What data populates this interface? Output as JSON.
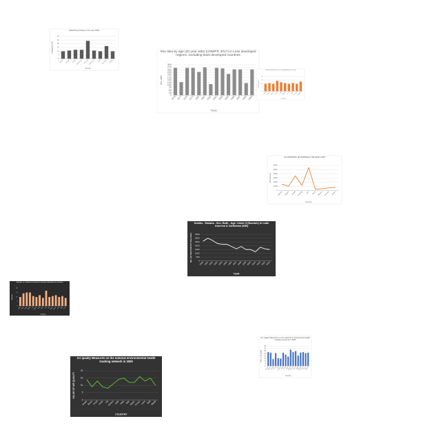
{
  "chart_data": [
    {
      "type": "bar",
      "title": "Stabilizing funding in the year 1990",
      "x_label": "Country",
      "y_label": "Funding (in US$)",
      "categories": [
        "Algeria",
        "Angola",
        "Benin",
        "Botswana",
        "Burundi",
        "Cameroon",
        "Chad",
        "Comoros",
        "Congo"
      ],
      "series": [
        {
          "name": "Funding",
          "color": "#595959",
          "values": [
            10,
            11,
            12,
            12,
            24,
            11,
            10,
            17,
            10
          ]
        }
      ],
      "ylim": [
        0,
        30
      ],
      "yticks": [
        0,
        5,
        10,
        15,
        20,
        25,
        30
      ],
      "grid": true
    },
    {
      "type": "bar",
      "title": "Sex ratio by age (20 year olds) (UNWPP, 2017) in Less developed regions, excluding least developed countries",
      "x_label": "Years",
      "y_label": "Sex ratio",
      "categories": [
        "1976",
        "1977",
        "1978",
        "1979",
        "1980",
        "1981",
        "1982",
        "1983",
        "1984",
        "1985",
        "1986",
        "1987",
        "1988",
        "1989"
      ],
      "series": [
        {
          "name": "Sex ratio",
          "color": "#8c8c8c",
          "values": [
            270,
            130,
            270,
            270,
            230,
            275,
            110,
            270,
            265,
            210,
            255,
            255,
            120,
            255
          ]
        }
      ],
      "ylim": [
        0,
        300
      ],
      "yticks": [
        0,
        25,
        50,
        75,
        100,
        125,
        150,
        175,
        200,
        225,
        250,
        275,
        300
      ],
      "grid": true
    },
    {
      "type": "bar",
      "title": "Undernourishment (% of population) in 2000",
      "x_label": "Country",
      "y_label": "% of population",
      "categories": [
        "Chad",
        "Congo",
        "Ghana",
        "Kenya",
        "Mali",
        "Niger",
        "Peru",
        "Togo",
        "Yemen",
        "Zambia"
      ],
      "series": [
        {
          "name": "Undernourishment",
          "color": "#ed7d31",
          "values": [
            10,
            11,
            10,
            14,
            12,
            11,
            10,
            11,
            10,
            13
          ]
        }
      ],
      "ylim": [
        0,
        20
      ],
      "yticks": [
        0,
        5,
        10,
        15,
        20
      ],
      "grid": true
    },
    {
      "type": "line",
      "title": "Oil Reserves (in barrels) in the year 1995",
      "x_label": "Country",
      "y_label": "Oil reserves",
      "categories": [
        "Algeria",
        "Angola",
        "Brazil",
        "Canada",
        "Iran",
        "Libya",
        "Mexico",
        "Norway",
        "Oman"
      ],
      "series": [
        {
          "name": "Oil reserves",
          "color": "#e07b29",
          "values": [
            1500,
            1000,
            3500,
            1200,
            5500,
            300,
            400,
            600,
            700
          ]
        }
      ],
      "ylim": [
        0,
        6000
      ],
      "yticks": [
        0,
        1000,
        2000,
        3000,
        4000,
        5000,
        6000
      ],
      "grid": true
    },
    {
      "type": "line",
      "title": "Deaths - Malaria - Sex: Both - Age: Under 5 (Number) in Latin America & Caribbean (WB)",
      "x_label": "YEAR",
      "y_label": "NO. OF DEATHS BY MALARIA",
      "background": "#333333",
      "categories": [
        "1990",
        "1991",
        "1992",
        "1993",
        "1994",
        "1995",
        "1996",
        "1997",
        "1998",
        "1999",
        "2000",
        "2001",
        "2002",
        "2003",
        "2004"
      ],
      "series": [
        {
          "name": "Deaths",
          "color": "#f2f2f2",
          "values": [
            2600,
            3000,
            2700,
            2300,
            2200,
            2200,
            1900,
            1600,
            1900,
            1500,
            1500,
            1200,
            1800,
            1600,
            1500
          ]
        }
      ],
      "ylim": [
        0,
        3500
      ],
      "yticks": [
        0,
        500,
        1000,
        1500,
        2000,
        2500,
        3000,
        3500
      ],
      "grid": true
    },
    {
      "type": "bar",
      "title": "Number of students enrolled in tertiary education by country",
      "x_label": "Country",
      "y_label": "Students",
      "background": "#2b2b2b",
      "categories": [
        "Chile",
        "China",
        "Cuba",
        "Egypt",
        "Fiji",
        "Gabon",
        "Haiti",
        "India",
        "Iran",
        "Iraq",
        "Japan",
        "Kenya",
        "Laos",
        "Mali",
        "Peru"
      ],
      "series": [
        {
          "name": "Students",
          "color": "#f4b183",
          "values": [
            10,
            14,
            15,
            15,
            11,
            10,
            12,
            9,
            17,
            10,
            11,
            12,
            10,
            11,
            9
          ]
        }
      ],
      "ylim": [
        0,
        20
      ],
      "yticks": [
        0,
        5,
        10,
        15,
        20
      ],
      "grid": false
    },
    {
      "type": "bar",
      "title": "Air quality Measures on the national environmental health tracking network in 2008",
      "x_label": "Country",
      "y_label": "Value of air quality",
      "categories": [
        "Aruba",
        "Benin",
        "Chad",
        "Cuba",
        "Fiji",
        "Ghana",
        "Haiti",
        "India",
        "Italy",
        "Japan",
        "Kenya",
        "Laos",
        "Mali",
        "Nepal",
        "Oman",
        "Peru",
        "Qatar"
      ],
      "series": [
        {
          "name": "Air quality",
          "color": "#4472c4",
          "values": [
            28,
            27,
            14,
            26,
            16,
            15,
            27,
            23,
            19,
            33,
            28,
            30,
            21,
            27,
            28,
            26,
            27
          ]
        }
      ],
      "ylim": [
        0,
        40
      ],
      "yticks": [
        0,
        5,
        10,
        15,
        20,
        25,
        30,
        35,
        40
      ],
      "grid": true
    },
    {
      "type": "line",
      "title": "Air quality Measures on the national environmental health tracking network in 2009",
      "x_label": "COUNTRY",
      "y_label": "VALUE OF AIR QUALITY",
      "background": "#333333",
      "categories": [
        "Aruba",
        "Benin",
        "Chad",
        "Cuba",
        "Fiji",
        "Ghana",
        "Haiti",
        "India",
        "Italy",
        "Japan",
        "Kenya",
        "Laos",
        "Mali",
        "Nepal"
      ],
      "series": [
        {
          "name": "Air quality",
          "color": "#5db233",
          "values": [
            14,
            9,
            13,
            9,
            8,
            11,
            14,
            15,
            12,
            12,
            16,
            13,
            15,
            10
          ]
        }
      ],
      "ylim": [
        0,
        20
      ],
      "yticks": [
        0,
        5,
        10,
        15,
        20
      ],
      "grid": true
    }
  ]
}
